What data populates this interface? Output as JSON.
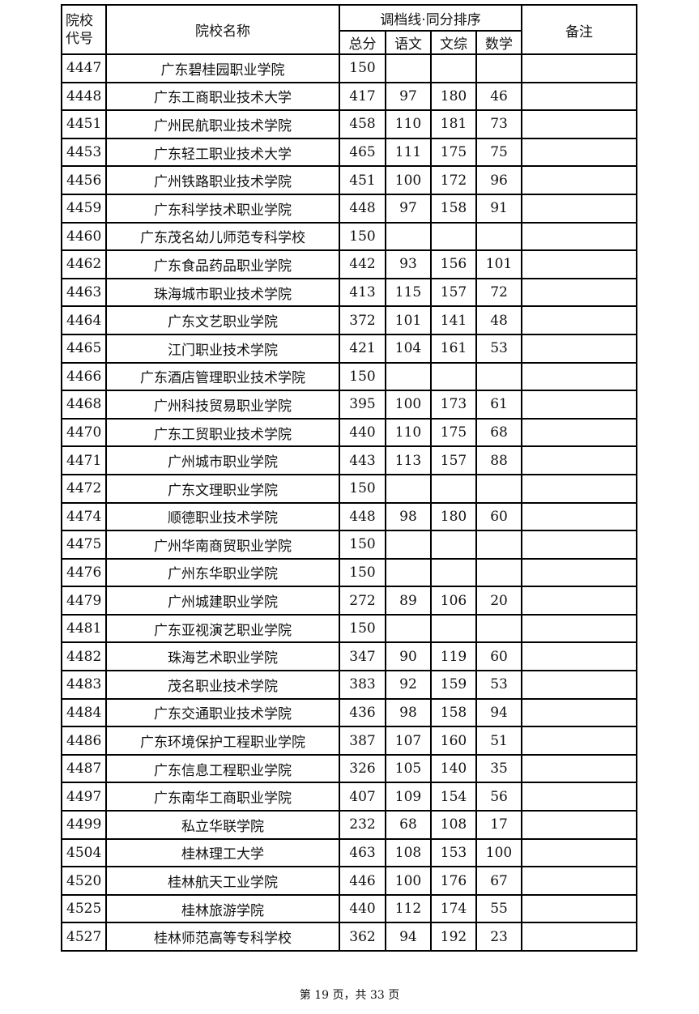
{
  "table": {
    "headers": {
      "code": "院校代号",
      "name": "院校名称",
      "group": "调档线·同分排序",
      "total": "总分",
      "chinese": "语文",
      "liberal": "文综",
      "math": "数学",
      "notes": "备注"
    },
    "rows": [
      [
        "4447",
        "广东碧桂园职业学院",
        "150",
        "",
        "",
        "",
        ""
      ],
      [
        "4448",
        "广东工商职业技术大学",
        "417",
        "97",
        "180",
        "46",
        ""
      ],
      [
        "4451",
        "广州民航职业技术学院",
        "458",
        "110",
        "181",
        "73",
        ""
      ],
      [
        "4453",
        "广东轻工职业技术大学",
        "465",
        "111",
        "175",
        "75",
        ""
      ],
      [
        "4456",
        "广州铁路职业技术学院",
        "451",
        "100",
        "172",
        "96",
        ""
      ],
      [
        "4459",
        "广东科学技术职业学院",
        "448",
        "97",
        "158",
        "91",
        ""
      ],
      [
        "4460",
        "广东茂名幼儿师范专科学校",
        "150",
        "",
        "",
        "",
        ""
      ],
      [
        "4462",
        "广东食品药品职业学院",
        "442",
        "93",
        "156",
        "101",
        ""
      ],
      [
        "4463",
        "珠海城市职业技术学院",
        "413",
        "115",
        "157",
        "72",
        ""
      ],
      [
        "4464",
        "广东文艺职业学院",
        "372",
        "101",
        "141",
        "48",
        ""
      ],
      [
        "4465",
        "江门职业技术学院",
        "421",
        "104",
        "161",
        "53",
        ""
      ],
      [
        "4466",
        "广东酒店管理职业技术学院",
        "150",
        "",
        "",
        "",
        ""
      ],
      [
        "4468",
        "广州科技贸易职业学院",
        "395",
        "100",
        "173",
        "61",
        ""
      ],
      [
        "4470",
        "广东工贸职业技术学院",
        "440",
        "110",
        "175",
        "68",
        ""
      ],
      [
        "4471",
        "广州城市职业学院",
        "443",
        "113",
        "157",
        "88",
        ""
      ],
      [
        "4472",
        "广东文理职业学院",
        "150",
        "",
        "",
        "",
        ""
      ],
      [
        "4474",
        "顺德职业技术学院",
        "448",
        "98",
        "180",
        "60",
        ""
      ],
      [
        "4475",
        "广州华南商贸职业学院",
        "150",
        "",
        "",
        "",
        ""
      ],
      [
        "4476",
        "广州东华职业学院",
        "150",
        "",
        "",
        "",
        ""
      ],
      [
        "4479",
        "广州城建职业学院",
        "272",
        "89",
        "106",
        "20",
        ""
      ],
      [
        "4481",
        "广东亚视演艺职业学院",
        "150",
        "",
        "",
        "",
        ""
      ],
      [
        "4482",
        "珠海艺术职业学院",
        "347",
        "90",
        "119",
        "60",
        ""
      ],
      [
        "4483",
        "茂名职业技术学院",
        "383",
        "92",
        "159",
        "53",
        ""
      ],
      [
        "4484",
        "广东交通职业技术学院",
        "436",
        "98",
        "158",
        "94",
        ""
      ],
      [
        "4486",
        "广东环境保护工程职业学院",
        "387",
        "107",
        "160",
        "51",
        ""
      ],
      [
        "4487",
        "广东信息工程职业学院",
        "326",
        "105",
        "140",
        "35",
        ""
      ],
      [
        "4497",
        "广东南华工商职业学院",
        "407",
        "109",
        "154",
        "56",
        ""
      ],
      [
        "4499",
        "私立华联学院",
        "232",
        "68",
        "108",
        "17",
        ""
      ],
      [
        "4504",
        "桂林理工大学",
        "463",
        "108",
        "153",
        "100",
        ""
      ],
      [
        "4520",
        "桂林航天工业学院",
        "446",
        "100",
        "176",
        "67",
        ""
      ],
      [
        "4525",
        "桂林旅游学院",
        "440",
        "112",
        "174",
        "55",
        ""
      ],
      [
        "4527",
        "桂林师范高等专科学校",
        "362",
        "94",
        "192",
        "23",
        ""
      ]
    ]
  },
  "footer": "第 19 页，共 33 页"
}
